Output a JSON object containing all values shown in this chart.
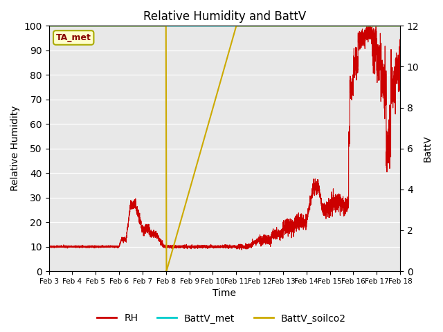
{
  "title": "Relative Humidity and BattV",
  "xlabel": "Time",
  "ylabel_left": "Relative Humidity",
  "ylabel_right": "BattV",
  "x_tick_labels": [
    "Feb 3",
    "Feb 4",
    "Feb 5",
    "Feb 6",
    "Feb 7",
    "Feb 8",
    "Feb 9",
    "Feb 10",
    "Feb 11",
    "Feb 12",
    "Feb 13",
    "Feb 14",
    "Feb 15",
    "Feb 16",
    "Feb 17",
    "Feb 18"
  ],
  "x_tick_positions": [
    0,
    1,
    2,
    3,
    4,
    5,
    6,
    7,
    8,
    9,
    10,
    11,
    12,
    13,
    14,
    15
  ],
  "ylim_left": [
    0,
    100
  ],
  "ylim_right": [
    0,
    12
  ],
  "yticks_left": [
    0,
    10,
    20,
    30,
    40,
    50,
    60,
    70,
    80,
    90,
    100
  ],
  "yticks_right": [
    0,
    2,
    4,
    6,
    8,
    10,
    12
  ],
  "rh_color": "#cc0000",
  "battv_met_color": "#00cccc",
  "battv_soilco2_color": "#ccaa00",
  "bg_color": "#e8e8e8",
  "annotation_text": "TA_met",
  "legend_entries": [
    "RH",
    "BattV_met",
    "BattV_soilco2"
  ],
  "fig_width": 6.4,
  "fig_height": 4.8,
  "dpi": 100
}
